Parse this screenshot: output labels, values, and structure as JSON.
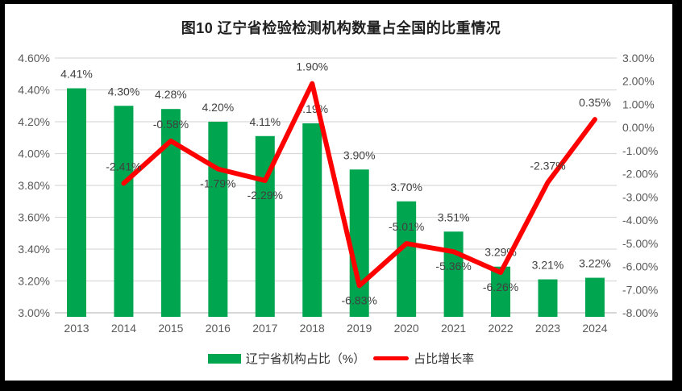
{
  "title": "图10 辽宁省检验检测机构数量占全国的比重情况",
  "chart_data": {
    "type": "bar+line",
    "categories": [
      "2013",
      "2014",
      "2015",
      "2016",
      "2017",
      "2018",
      "2019",
      "2020",
      "2021",
      "2022",
      "2023",
      "2024"
    ],
    "series": [
      {
        "name": "辽宁省机构占比（%）",
        "type": "bar",
        "axis": "left",
        "color": "#00A550",
        "values": [
          4.41,
          4.3,
          4.28,
          4.2,
          4.11,
          4.19,
          3.9,
          3.7,
          3.51,
          3.29,
          3.21,
          3.22
        ],
        "labels": [
          "4.41%",
          "4.30%",
          "4.28%",
          "4.20%",
          "4.11%",
          "4.19%",
          "3.90%",
          "3.70%",
          "3.51%",
          "3.29%",
          "3.21%",
          "3.22%"
        ]
      },
      {
        "name": "占比增长率",
        "type": "line",
        "axis": "right",
        "color": "#FE0000",
        "values": [
          null,
          -2.41,
          -0.58,
          -1.79,
          -2.29,
          1.9,
          -6.83,
          -5.01,
          -5.36,
          -6.26,
          -2.37,
          0.35
        ],
        "labels": [
          null,
          "-2.41%",
          "-0.58%",
          "-1.79%",
          "-2.29%",
          "1.90%",
          "-6.83%",
          "-5.01%",
          "-5.36%",
          "-6.26%",
          "-2.37%",
          "0.35%"
        ],
        "label_positions": [
          null,
          "above",
          "above",
          "below",
          "below",
          "above",
          "below",
          "above",
          "below",
          "below",
          "above",
          "above"
        ]
      }
    ],
    "left_axis": {
      "min": 3.0,
      "max": 4.6,
      "step": 0.2,
      "ticks": [
        "4.60%",
        "4.40%",
        "4.20%",
        "4.00%",
        "3.80%",
        "3.60%",
        "3.40%",
        "3.20%",
        "3.00%"
      ]
    },
    "right_axis": {
      "min": -8.0,
      "max": 3.0,
      "step": 1.0,
      "ticks": [
        "3.00%",
        "2.00%",
        "1.00%",
        "0.00%",
        "-1.00%",
        "-2.00%",
        "-3.00%",
        "-4.00%",
        "-5.00%",
        "-6.00%",
        "-7.00%",
        "-8.00%"
      ]
    },
    "grid": true,
    "legend_position": "bottom"
  },
  "colors": {
    "bar": "#00A550",
    "line": "#FE0000",
    "gridline": "#D9D9D9",
    "axis_line": "#BFBFBF",
    "tick_text": "#595959",
    "data_label_text": "#404040",
    "frame": "#000000"
  }
}
